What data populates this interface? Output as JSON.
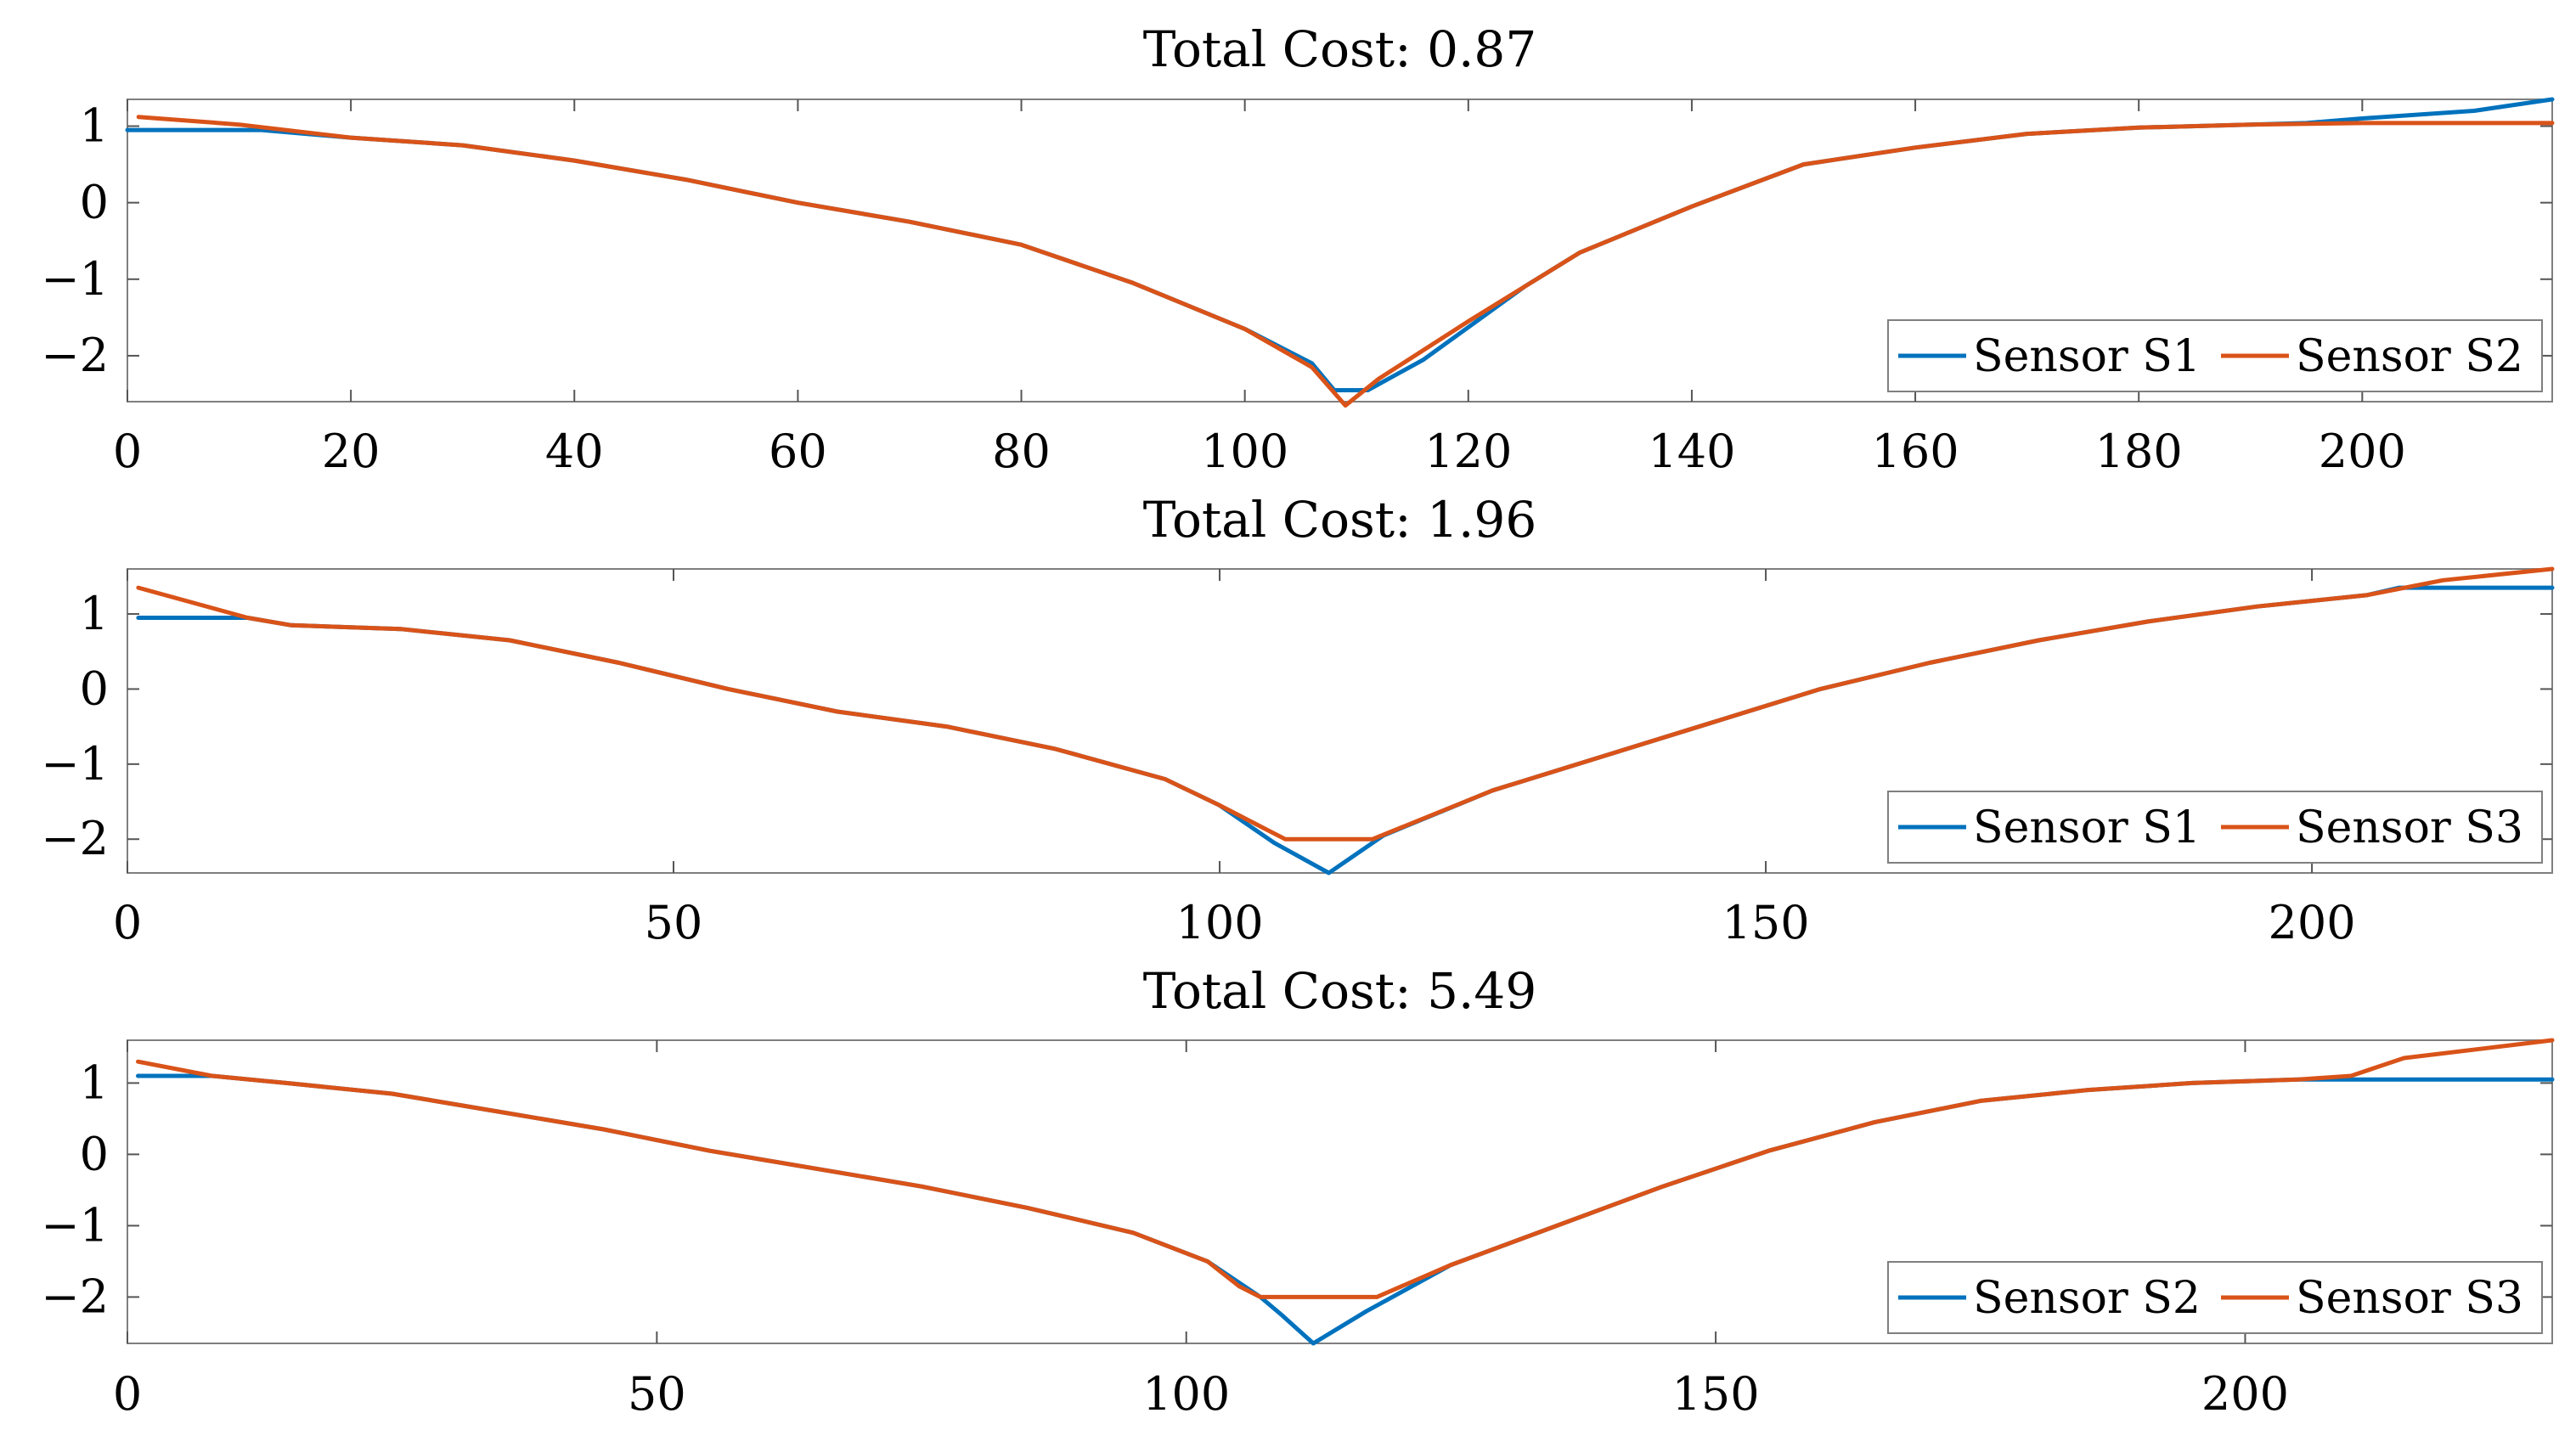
{
  "colors": {
    "blue": "#0072BD",
    "orange": "#D95319",
    "axis": "#7f7f7f"
  },
  "chart_data": [
    {
      "type": "line",
      "title": "Total Cost: 0.87",
      "xlim": [
        0,
        217
      ],
      "ylim": [
        -2.6,
        1.35
      ],
      "xticks": [
        0,
        20,
        40,
        60,
        80,
        100,
        120,
        140,
        160,
        180,
        200
      ],
      "xtick_labels": [
        "0",
        "20",
        "40",
        "60",
        "80",
        "100",
        "120",
        "140",
        "160",
        "180",
        "200"
      ],
      "yticks": [
        1,
        0,
        -1,
        -2
      ],
      "ytick_labels": [
        "1",
        "0",
        "−1",
        "−2"
      ],
      "legend_location": "bottom-right",
      "series": [
        {
          "name": "Sensor S1",
          "color": "blue",
          "x": [
            0,
            12,
            20,
            30,
            40,
            50,
            60,
            70,
            80,
            90,
            100,
            106,
            108,
            111,
            116,
            125,
            130,
            140,
            150,
            160,
            170,
            180,
            190,
            195,
            200,
            210,
            217
          ],
          "y": [
            0.95,
            0.95,
            0.85,
            0.75,
            0.55,
            0.3,
            0.0,
            -0.25,
            -0.55,
            -1.05,
            -1.65,
            -2.1,
            -2.45,
            -2.45,
            -2.05,
            -1.1,
            -0.65,
            -0.05,
            0.5,
            0.72,
            0.9,
            0.98,
            1.02,
            1.04,
            1.1,
            1.2,
            1.35
          ]
        },
        {
          "name": "Sensor S2",
          "color": "orange",
          "x": [
            1,
            10,
            20,
            30,
            40,
            50,
            60,
            70,
            80,
            90,
            100,
            106,
            109,
            112,
            120,
            130,
            140,
            150,
            160,
            170,
            180,
            190,
            200,
            217
          ],
          "y": [
            1.12,
            1.02,
            0.85,
            0.75,
            0.55,
            0.3,
            0.0,
            -0.25,
            -0.55,
            -1.05,
            -1.65,
            -2.15,
            -2.65,
            -2.3,
            -1.55,
            -0.65,
            -0.05,
            0.5,
            0.72,
            0.9,
            0.98,
            1.02,
            1.04,
            1.04
          ]
        }
      ]
    },
    {
      "type": "line",
      "title": "Total Cost: 1.96",
      "xlim": [
        0,
        222
      ],
      "ylim": [
        -2.45,
        1.6
      ],
      "xticks": [
        0,
        50,
        100,
        150,
        200
      ],
      "xtick_labels": [
        "0",
        "50",
        "100",
        "150",
        "200"
      ],
      "yticks": [
        1,
        0,
        -1,
        -2
      ],
      "ytick_labels": [
        "1",
        "0",
        "−1",
        "−2"
      ],
      "legend_location": "bottom-right",
      "series": [
        {
          "name": "Sensor S1",
          "color": "blue",
          "x": [
            1,
            11,
            15,
            25,
            35,
            45,
            55,
            65,
            75,
            85,
            95,
            100,
            105,
            110,
            115,
            125,
            135,
            145,
            155,
            165,
            175,
            185,
            195,
            205,
            208,
            222
          ],
          "y": [
            0.95,
            0.95,
            0.85,
            0.8,
            0.65,
            0.35,
            0.0,
            -0.3,
            -0.5,
            -0.8,
            -1.2,
            -1.55,
            -2.05,
            -2.45,
            -1.95,
            -1.35,
            -0.9,
            -0.45,
            0.0,
            0.35,
            0.65,
            0.9,
            1.1,
            1.25,
            1.35,
            1.35
          ]
        },
        {
          "name": "Sensor S3",
          "color": "orange",
          "x": [
            1,
            11,
            15,
            25,
            35,
            45,
            55,
            65,
            75,
            85,
            95,
            100,
            104,
            106,
            114,
            125,
            135,
            145,
            155,
            165,
            175,
            185,
            195,
            205,
            212,
            222
          ],
          "y": [
            1.35,
            0.95,
            0.85,
            0.8,
            0.65,
            0.35,
            0.0,
            -0.3,
            -0.5,
            -0.8,
            -1.2,
            -1.55,
            -1.85,
            -2.0,
            -2.0,
            -1.35,
            -0.9,
            -0.45,
            0.0,
            0.35,
            0.65,
            0.9,
            1.1,
            1.25,
            1.45,
            1.6
          ]
        }
      ]
    },
    {
      "type": "line",
      "title": "Total Cost: 5.49",
      "xlim": [
        0,
        229
      ],
      "ylim": [
        -2.65,
        1.6
      ],
      "xticks": [
        0,
        50,
        100,
        150,
        200
      ],
      "xtick_labels": [
        "0",
        "50",
        "100",
        "150",
        "200"
      ],
      "yticks": [
        1,
        0,
        -1,
        -2
      ],
      "ytick_labels": [
        "1",
        "0",
        "−1",
        "−2"
      ],
      "legend_location": "bottom-right",
      "series": [
        {
          "name": "Sensor S2",
          "color": "blue",
          "x": [
            1,
            8,
            15,
            25,
            35,
            45,
            55,
            65,
            75,
            85,
            95,
            102,
            107,
            109,
            112,
            117,
            125,
            135,
            145,
            155,
            165,
            175,
            185,
            195,
            205,
            229
          ],
          "y": [
            1.1,
            1.1,
            1.0,
            0.85,
            0.6,
            0.35,
            0.05,
            -0.2,
            -0.45,
            -0.75,
            -1.1,
            -1.5,
            -2.0,
            -2.25,
            -2.65,
            -2.2,
            -1.55,
            -1.0,
            -0.45,
            0.05,
            0.45,
            0.75,
            0.9,
            1.0,
            1.05,
            1.05
          ]
        },
        {
          "name": "Sensor S3",
          "color": "orange",
          "x": [
            1,
            8,
            15,
            25,
            35,
            45,
            55,
            65,
            75,
            85,
            95,
            102,
            105,
            107,
            118,
            125,
            135,
            145,
            155,
            165,
            175,
            185,
            195,
            205,
            210,
            215,
            229
          ],
          "y": [
            1.3,
            1.1,
            1.0,
            0.85,
            0.6,
            0.35,
            0.05,
            -0.2,
            -0.45,
            -0.75,
            -1.1,
            -1.5,
            -1.85,
            -2.0,
            -2.0,
            -1.55,
            -1.0,
            -0.45,
            0.05,
            0.45,
            0.75,
            0.9,
            1.0,
            1.05,
            1.1,
            1.35,
            1.6
          ]
        }
      ]
    }
  ]
}
